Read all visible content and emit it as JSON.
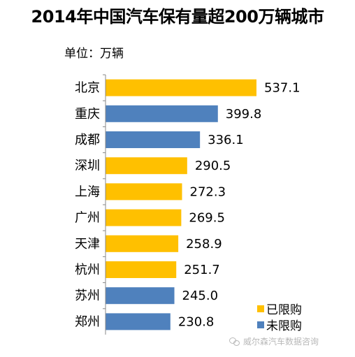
{
  "chart_data": {
    "type": "bar",
    "orientation": "horizontal",
    "title": "2014年中国汽车保有量超200万辆城市",
    "unit_label": "单位：万辆",
    "categories": [
      "北京",
      "重庆",
      "成都",
      "深圳",
      "上海",
      "广州",
      "天津",
      "杭州",
      "苏州",
      "郑州"
    ],
    "values": [
      537.1,
      399.8,
      336.1,
      290.5,
      272.3,
      269.5,
      258.9,
      251.7,
      245.0,
      230.8
    ],
    "value_labels": [
      "537.1",
      "399.8",
      "336.1",
      "290.5",
      "272.3",
      "269.5",
      "258.9",
      "251.7",
      "245.0",
      "230.8"
    ],
    "groups": [
      "已限购",
      "未限购",
      "未限购",
      "已限购",
      "已限购",
      "已限购",
      "已限购",
      "已限购",
      "未限购",
      "未限购"
    ],
    "legend": [
      {
        "name": "已限购",
        "color": "#FFC000"
      },
      {
        "name": "未限购",
        "color": "#4F81BD"
      }
    ],
    "xlim": [
      0,
      600
    ],
    "grid": false,
    "legend_position": "bottom-right"
  },
  "colors": {
    "restricted": "#FFC000",
    "unrestricted": "#4F81BD",
    "axis": "#888888"
  },
  "watermark": {
    "text": "威尔森汽车数据咨询",
    "icon": "wechat-icon"
  }
}
